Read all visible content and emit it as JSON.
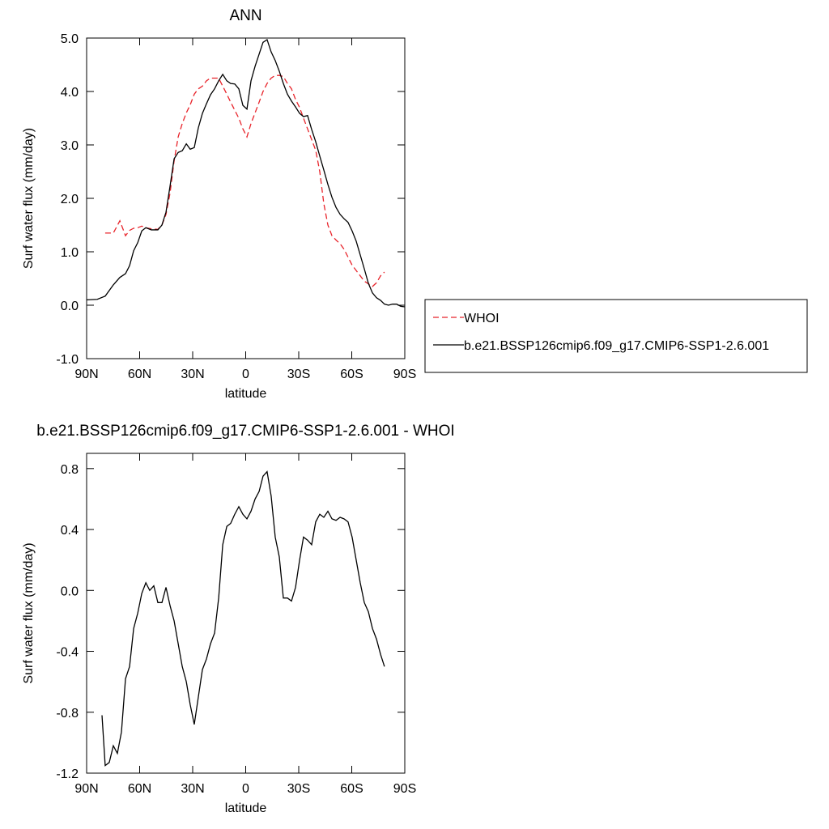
{
  "chart_data": [
    {
      "type": "line",
      "title": "ANN",
      "xlabel": "latitude",
      "ylabel": "Surf water flux (mm/day)",
      "xlim": [
        90,
        -90
      ],
      "xticks": [
        {
          "value": 90,
          "label": "90N"
        },
        {
          "value": 60,
          "label": "60N"
        },
        {
          "value": 30,
          "label": "30N"
        },
        0,
        {
          "value": -30,
          "label": "30S"
        },
        {
          "value": -60,
          "label": "60S"
        },
        {
          "value": -90,
          "label": "90S"
        }
      ],
      "ylim": [
        -1.0,
        5.0
      ],
      "yticks": [
        {
          "value": -1,
          "label": "-1.0"
        },
        {
          "value": 0,
          "label": "0.0"
        },
        {
          "value": 1,
          "label": "1.0"
        },
        {
          "value": 2,
          "label": "2.0"
        },
        {
          "value": 3,
          "label": "3.0"
        },
        {
          "value": 4,
          "label": "4.0"
        },
        {
          "value": 5,
          "label": "5.0"
        }
      ],
      "legend": "right",
      "x": [
        90,
        84.0,
        79.5,
        74.9,
        71.2,
        68.0,
        65.7,
        63.4,
        61.1,
        58.8,
        56.5,
        53.4,
        49.7,
        47.4,
        45.1,
        42.8,
        40.5,
        38.2,
        35.9,
        33.6,
        31.4,
        29.1,
        26.8,
        24.5,
        22.2,
        19.9,
        17.6,
        15.3,
        13.0,
        10.7,
        8.5,
        6.2,
        3.9,
        1.6,
        -0.7,
        -3.0,
        -5.3,
        -7.6,
        -9.8,
        -12.1,
        -14.4,
        -16.7,
        -19.0,
        -21.3,
        -23.6,
        -25.9,
        -28.2,
        -30.5,
        -32.7,
        -35.0,
        -37.3,
        -39.6,
        -41.9,
        -44.2,
        -46.5,
        -48.8,
        -51.1,
        -53.4,
        -55.6,
        -57.9,
        -60.2,
        -62.5,
        -64.8,
        -67.1,
        -69.4,
        -71.7,
        -74.0,
        -76.3,
        -78.5,
        -80.8,
        -83.1,
        -85.4,
        -87.7,
        -90
      ],
      "series": [
        {
          "name": "WHOI",
          "color": "#e8232a",
          "linestyle": "dashed",
          "values": [
            null,
            null,
            1.35,
            1.35,
            1.58,
            1.3,
            1.4,
            1.44,
            1.45,
            1.48,
            1.45,
            1.43,
            1.42,
            1.5,
            1.7,
            2.1,
            2.7,
            3.15,
            3.4,
            3.6,
            3.75,
            3.95,
            4.05,
            4.1,
            4.2,
            4.25,
            4.25,
            4.25,
            4.1,
            3.95,
            3.8,
            3.65,
            3.5,
            3.3,
            3.15,
            3.4,
            3.6,
            3.8,
            4.0,
            4.15,
            4.25,
            4.3,
            4.3,
            4.28,
            4.15,
            4.05,
            3.85,
            3.7,
            3.5,
            3.3,
            3.1,
            2.9,
            2.5,
            1.9,
            1.5,
            1.3,
            1.22,
            1.15,
            1.05,
            0.9,
            0.75,
            0.65,
            0.55,
            0.45,
            0.4,
            0.35,
            0.42,
            0.55,
            0.62,
            null,
            null,
            null,
            null,
            null
          ]
        },
        {
          "name": "b.e21.BSSP126cmip6.f09_g17.CMIP6-SSP1-2.6.001",
          "color": "#000000",
          "linestyle": "solid",
          "values": [
            0.1,
            0.11,
            0.17,
            0.38,
            0.52,
            0.59,
            0.74,
            1.02,
            1.17,
            1.39,
            1.45,
            1.41,
            1.41,
            1.5,
            1.74,
            2.23,
            2.74,
            2.86,
            2.89,
            3.02,
            2.92,
            2.95,
            3.32,
            3.59,
            3.77,
            3.94,
            4.05,
            4.2,
            4.32,
            4.2,
            4.15,
            4.14,
            4.05,
            3.74,
            3.67,
            4.2,
            4.47,
            4.7,
            4.92,
            4.97,
            4.74,
            4.58,
            4.38,
            4.15,
            3.95,
            3.82,
            3.71,
            3.59,
            3.53,
            3.55,
            3.29,
            3.06,
            2.79,
            2.53,
            2.26,
            2.02,
            1.83,
            1.7,
            1.62,
            1.55,
            1.39,
            1.2,
            0.94,
            0.68,
            0.41,
            0.23,
            0.14,
            0.09,
            0.02,
            0.0,
            0.02,
            0.02,
            -0.02,
            -0.03
          ]
        }
      ]
    },
    {
      "type": "line",
      "title": "b.e21.BSSP126cmip6.f09_g17.CMIP6-SSP1-2.6.001 - WHOI",
      "xlabel": "latitude",
      "ylabel": "Surf water flux (mm/day)",
      "xlim": [
        90,
        -90
      ],
      "xticks": [
        {
          "value": 90,
          "label": "90N"
        },
        {
          "value": 60,
          "label": "60N"
        },
        {
          "value": 30,
          "label": "30N"
        },
        0,
        {
          "value": -30,
          "label": "30S"
        },
        {
          "value": -60,
          "label": "60S"
        },
        {
          "value": -90,
          "label": "90S"
        }
      ],
      "ylim": [
        -1.2,
        0.9
      ],
      "yticks": [
        -1.2,
        -0.8,
        -0.4,
        {
          "value": 0,
          "label": "0.0"
        },
        0.4,
        0.8
      ],
      "x": [
        81.3,
        79.5,
        77.2,
        74.9,
        72.6,
        70.3,
        68.0,
        65.7,
        63.4,
        61.1,
        58.8,
        56.5,
        54.3,
        52.0,
        49.7,
        47.4,
        45.1,
        42.8,
        40.5,
        38.2,
        35.9,
        33.6,
        31.4,
        29.1,
        26.8,
        24.5,
        22.2,
        19.9,
        17.6,
        15.3,
        13.0,
        10.7,
        8.5,
        6.2,
        3.9,
        1.6,
        -0.7,
        -3.0,
        -5.3,
        -7.6,
        -9.8,
        -12.1,
        -14.4,
        -16.7,
        -19.0,
        -21.3,
        -23.6,
        -25.9,
        -28.2,
        -30.5,
        -32.7,
        -35.0,
        -37.3,
        -39.6,
        -41.9,
        -44.2,
        -46.5,
        -48.8,
        -51.1,
        -53.4,
        -55.6,
        -57.9,
        -60.2,
        -62.5,
        -64.8,
        -67.1,
        -69.4,
        -71.7,
        -74.0,
        -76.3,
        -78.5
      ],
      "series": [
        {
          "color": "#000000",
          "linestyle": "solid",
          "values": [
            -0.82,
            -1.15,
            -1.13,
            -1.02,
            -1.07,
            -0.93,
            -0.58,
            -0.5,
            -0.25,
            -0.15,
            -0.02,
            0.05,
            0.0,
            0.03,
            -0.08,
            -0.08,
            0.02,
            -0.1,
            -0.2,
            -0.35,
            -0.5,
            -0.6,
            -0.75,
            -0.88,
            -0.7,
            -0.52,
            -0.45,
            -0.35,
            -0.28,
            -0.05,
            0.3,
            0.42,
            0.44,
            0.5,
            0.55,
            0.5,
            0.47,
            0.52,
            0.6,
            0.65,
            0.75,
            0.78,
            0.62,
            0.35,
            0.22,
            -0.05,
            -0.05,
            -0.07,
            0.02,
            0.2,
            0.35,
            0.33,
            0.3,
            0.45,
            0.5,
            0.48,
            0.52,
            0.47,
            0.46,
            0.48,
            0.47,
            0.45,
            0.35,
            0.2,
            0.05,
            -0.08,
            -0.14,
            -0.25,
            -0.32,
            -0.42,
            -0.5
          ]
        }
      ]
    }
  ]
}
